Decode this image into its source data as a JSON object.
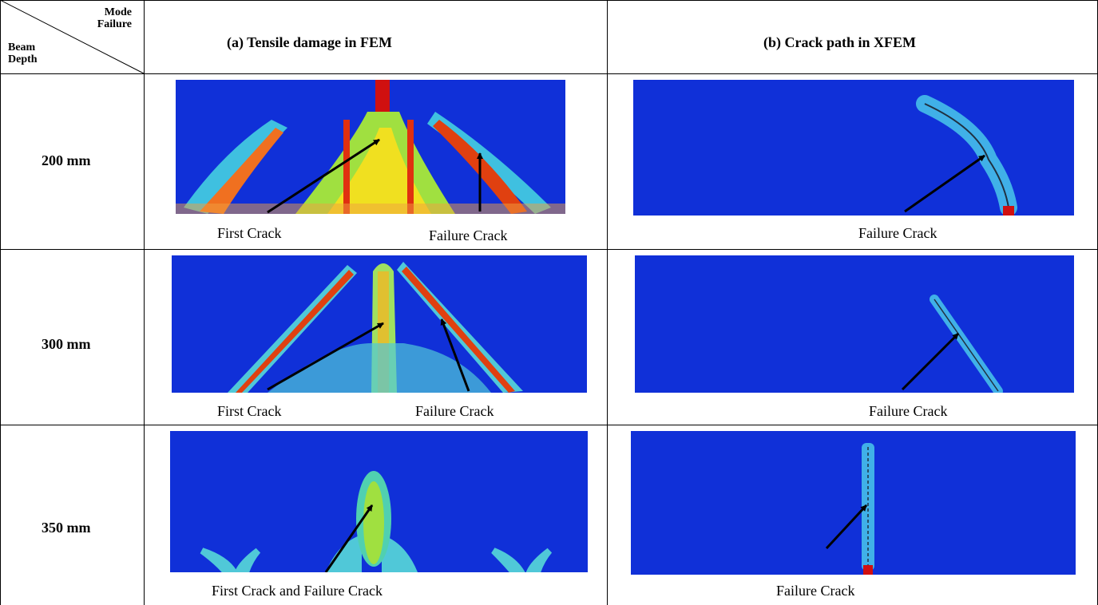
{
  "table": {
    "corner": {
      "column_label": "Mode Failure",
      "row_label": "Beam Depth"
    },
    "columns": [
      "(a) Tensile damage in FEM",
      "(b) Crack path in XFEM"
    ],
    "rows": [
      {
        "depth": "200 mm",
        "fem_captions": [
          "First Crack",
          "Failure Crack"
        ],
        "xfem_caption": "Failure Crack"
      },
      {
        "depth": "300 mm",
        "fem_captions": [
          "First Crack",
          "Failure Crack"
        ],
        "xfem_caption": "Failure Crack"
      },
      {
        "depth": "350 mm",
        "fem_captions": [
          "First Crack and Failure Crack"
        ],
        "xfem_caption": "Failure Crack"
      }
    ]
  }
}
